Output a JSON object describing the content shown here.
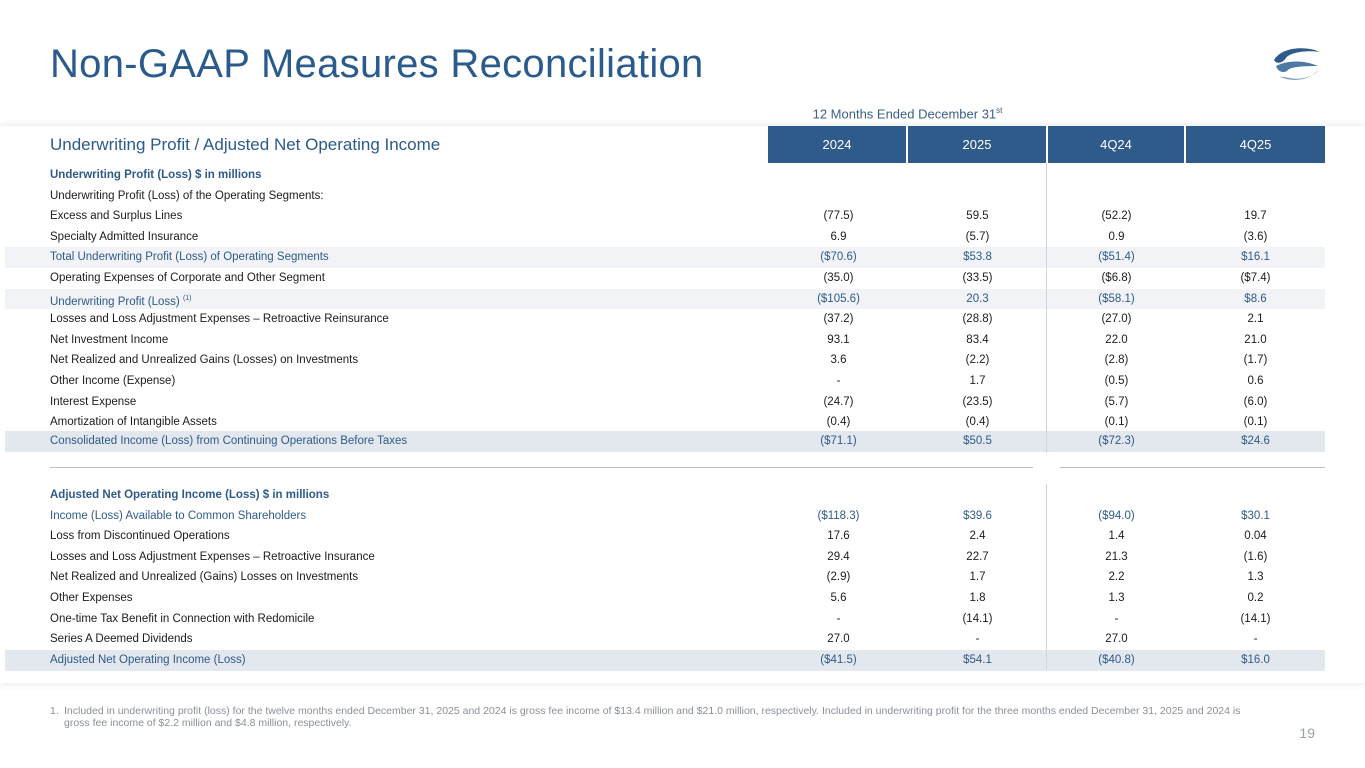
{
  "title": "Non-GAAP Measures Reconciliation",
  "period_header": "12 Months Ended December 31",
  "period_header_sup": "st",
  "section_title": "Underwriting Profit / Adjusted Net Operating Income",
  "columns": [
    "2024",
    "2025",
    "4Q24",
    "4Q25"
  ],
  "section1": {
    "heading": "Underwriting  Profit (Loss) $ in millions",
    "subheading": "Underwriting Profit (Loss) of the Operating Segments:",
    "rows": [
      {
        "label": "Excess and Surplus Lines",
        "values": [
          "(77.5)",
          "59.5",
          "(52.2)",
          "19.7"
        ]
      },
      {
        "label": "Specialty Admitted Insurance",
        "values": [
          "6.9",
          "(5.7)",
          "0.9",
          "(3.6)"
        ]
      },
      {
        "label": "Total Underwriting Profit (Loss) of Operating Segments",
        "values": [
          "($70.6)",
          "$53.8",
          "($51.4)",
          "$16.1"
        ]
      },
      {
        "label": "Operating Expenses of Corporate and Other Segment",
        "values": [
          "(35.0)",
          "(33.5)",
          "($6.8)",
          "($7.4)"
        ]
      },
      {
        "label": "Underwriting Profit (Loss)",
        "sup": "(1)",
        "values": [
          "($105.6)",
          "20.3",
          "($58.1)",
          "$8.6"
        ]
      },
      {
        "label": "Losses and Loss Adjustment Expenses – Retroactive Reinsurance",
        "values": [
          "(37.2)",
          "(28.8)",
          "(27.0)",
          "2.1"
        ]
      },
      {
        "label": "Net Investment Income",
        "values": [
          "93.1",
          "83.4",
          "22.0",
          "21.0"
        ]
      },
      {
        "label": "Net Realized and Unrealized Gains (Losses) on Investments",
        "values": [
          "3.6",
          "(2.2)",
          "(2.8)",
          "(1.7)"
        ]
      },
      {
        "label": "Other Income (Expense)",
        "values": [
          "-",
          "1.7",
          "(0.5)",
          "0.6"
        ]
      },
      {
        "label": "Interest Expense",
        "values": [
          "(24.7)",
          "(23.5)",
          "(5.7)",
          "(6.0)"
        ]
      },
      {
        "label": "Amortization of Intangible Assets",
        "values": [
          "(0.4)",
          "(0.4)",
          "(0.1)",
          "(0.1)"
        ]
      },
      {
        "label": "Consolidated Income (Loss) from Continuing Operations Before Taxes",
        "values": [
          "($71.1)",
          "$50.5",
          "($72.3)",
          "$24.6"
        ]
      }
    ]
  },
  "section2": {
    "heading": "Adjusted Net Operating Income (Loss) $ in millions",
    "rows": [
      {
        "label": "Income (Loss) Available to Common Shareholders",
        "values": [
          "($118.3)",
          "$39.6",
          "($94.0)",
          "$30.1"
        ]
      },
      {
        "label": "Loss from Discontinued Operations",
        "values": [
          "17.6",
          "2.4",
          "1.4",
          "0.04"
        ]
      },
      {
        "label": "Losses and Loss Adjustment Expenses – Retroactive Insurance",
        "values": [
          "29.4",
          "22.7",
          "21.3",
          "(1.6)"
        ]
      },
      {
        "label": "Net Realized and Unrealized (Gains) Losses on Investments",
        "values": [
          "(2.9)",
          "1.7",
          "2.2",
          "1.3"
        ]
      },
      {
        "label": "Other Expenses",
        "values": [
          "5.6",
          "1.8",
          "1.3",
          "0.2"
        ]
      },
      {
        "label": "One-time Tax Benefit in Connection with Redomicile",
        "values": [
          "-",
          "(14.1)",
          "-",
          "(14.1)"
        ]
      },
      {
        "label": "Series A Deemed Dividends",
        "values": [
          "27.0",
          "-",
          "27.0",
          "-"
        ]
      },
      {
        "label": "Adjusted Net Operating Income (Loss)",
        "values": [
          "($41.5)",
          "$54.1",
          "($40.8)",
          "$16.0"
        ]
      }
    ]
  },
  "footnote_number": "1.",
  "footnote": "Included in underwriting profit (loss) for the twelve months ended December 31, 2025 and  2024 is gross fee income of $13.4 million and  $21.0 million, respectively. Included in underwriting profit for the three months ended December 31, 2025 and 2024 is gross fee income of $2.2 million and $4.8 million, respectively.",
  "page_number": "19",
  "colors": {
    "title": "#2b5b8c",
    "header_bg": "#2f5b8a",
    "accent_text": "#2f5b8a",
    "logo_dark": "#2f5b8a",
    "logo_light": "#7f9fc0"
  }
}
